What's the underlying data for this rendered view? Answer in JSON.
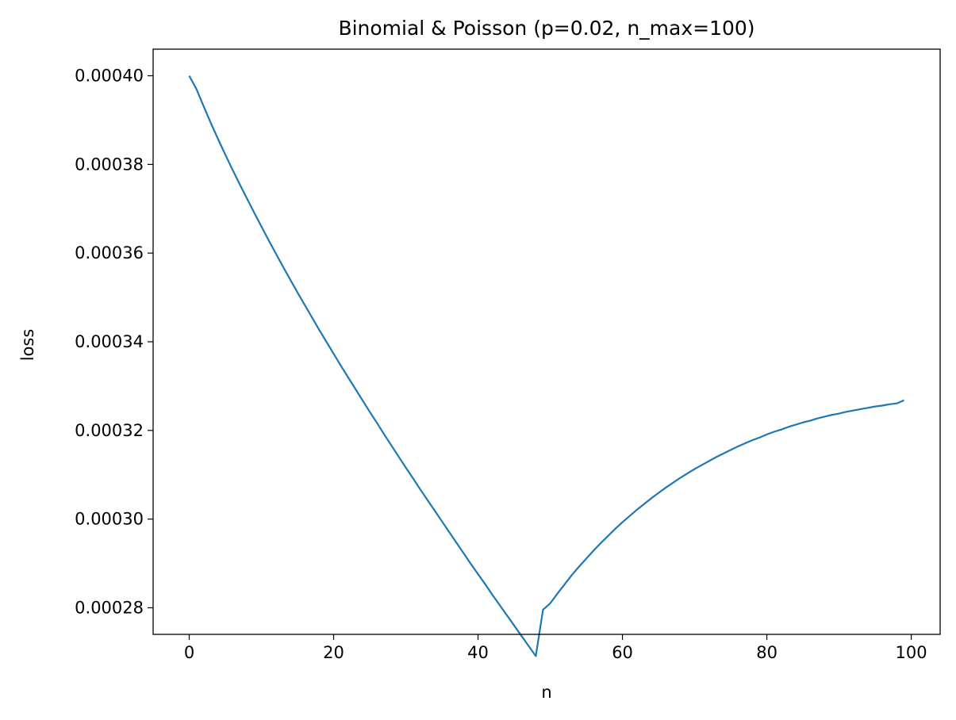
{
  "chart_data": {
    "type": "line",
    "title": "Binomial & Poisson (p=0.02, n_max=100)",
    "xlabel": "n",
    "ylabel": "loss",
    "xlim": [
      -5,
      104
    ],
    "ylim": [
      0.000274,
      0.000406
    ],
    "xticks": [
      0,
      20,
      40,
      60,
      80,
      100
    ],
    "xtick_labels": [
      "0",
      "20",
      "40",
      "60",
      "80",
      "100"
    ],
    "yticks": [
      0.00028,
      0.0003,
      0.00032,
      0.00034,
      0.00036,
      0.00038,
      0.0004
    ],
    "ytick_labels": [
      "0.00028",
      "0.00030",
      "0.00032",
      "0.00034",
      "0.00036",
      "0.00038",
      "0.00040"
    ],
    "grid": false,
    "series": [
      {
        "color": "#1f77b4",
        "x": [
          0,
          1,
          2,
          3,
          4,
          5,
          6,
          7,
          8,
          9,
          10,
          11,
          12,
          13,
          14,
          15,
          16,
          17,
          18,
          19,
          20,
          21,
          22,
          23,
          24,
          25,
          26,
          27,
          28,
          29,
          30,
          31,
          32,
          33,
          34,
          35,
          36,
          37,
          38,
          39,
          40,
          41,
          42,
          43,
          44,
          45,
          46,
          47,
          48,
          49,
          50,
          51,
          52,
          53,
          54,
          55,
          56,
          57,
          58,
          59,
          60,
          61,
          62,
          63,
          64,
          65,
          66,
          67,
          68,
          69,
          70,
          71,
          72,
          73,
          74,
          75,
          76,
          77,
          78,
          79,
          80,
          81,
          82,
          83,
          84,
          85,
          86,
          87,
          88,
          89,
          90,
          91,
          92,
          93,
          94,
          95,
          96,
          97,
          98,
          99
        ],
        "y": [
          0.0004,
          0.000397,
          0.0003931,
          0.0003893,
          0.0003857,
          0.0003822,
          0.0003788,
          0.0003755,
          0.0003723,
          0.0003691,
          0.000366,
          0.0003629,
          0.0003599,
          0.0003569,
          0.000354,
          0.0003511,
          0.0003483,
          0.0003455,
          0.0003427,
          0.00034,
          0.0003373,
          0.0003346,
          0.000332,
          0.0003294,
          0.0003268,
          0.0003242,
          0.0003217,
          0.0003191,
          0.0003166,
          0.0003141,
          0.0003116,
          0.0003092,
          0.0003067,
          0.0003043,
          0.0003019,
          0.0002995,
          0.0002971,
          0.0002947,
          0.0002923,
          0.0002899,
          0.0002876,
          0.0002853,
          0.0002829,
          0.0002806,
          0.0002783,
          0.000276,
          0.0002737,
          0.0002714,
          0.0002691,
          0.00027955,
          0.000281,
          0.0002832,
          0.0002853,
          0.0002874,
          0.0002893,
          0.0002911,
          0.0002929,
          0.0002946,
          0.0002962,
          0.0002978,
          0.0002993,
          0.0003007,
          0.0003021,
          0.0003034,
          0.0003047,
          0.0003059,
          0.0003071,
          0.0003082,
          0.0003093,
          0.0003103,
          0.0003113,
          0.0003122,
          0.0003131,
          0.000314,
          0.0003148,
          0.0003156,
          0.0003164,
          0.0003171,
          0.0003178,
          0.0003184,
          0.0003191,
          0.0003197,
          0.0003202,
          0.0003208,
          0.0003213,
          0.0003218,
          0.0003222,
          0.0003227,
          0.0003231,
          0.0003235,
          0.0003238,
          0.0003242,
          0.0003245,
          0.0003248,
          0.0003251,
          0.0003254,
          0.0003256,
          0.0003259,
          0.0003261,
          0.0003268
        ]
      }
    ]
  }
}
